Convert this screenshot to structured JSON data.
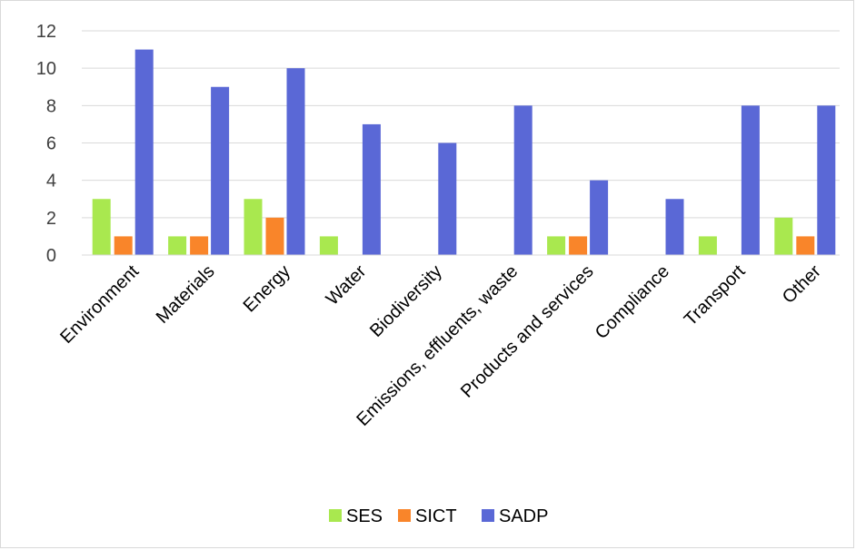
{
  "chart_data": {
    "type": "bar",
    "title": "",
    "xlabel": "",
    "ylabel": "",
    "ylim": [
      0,
      12
    ],
    "yticks": [
      0,
      2,
      4,
      6,
      8,
      10,
      12
    ],
    "grid": true,
    "legend_position": "bottom",
    "categories": [
      "Environment",
      "Materials",
      "Energy",
      "Water",
      "Biodiversity",
      "Emissions, effluents, waste",
      "Products and services",
      "Compliance",
      "Transport",
      "Other"
    ],
    "series": [
      {
        "name": "SES",
        "color": "#a9e84f",
        "values": [
          3,
          1,
          3,
          1,
          0,
          0,
          1,
          0,
          1,
          2
        ]
      },
      {
        "name": "SICT",
        "color": "#f9852a",
        "values": [
          1,
          1,
          2,
          0,
          0,
          0,
          1,
          0,
          0,
          1
        ]
      },
      {
        "name": "SADP",
        "color": "#5a68d6",
        "values": [
          11,
          9,
          10,
          7,
          6,
          8,
          4,
          3,
          8,
          8
        ]
      }
    ]
  }
}
